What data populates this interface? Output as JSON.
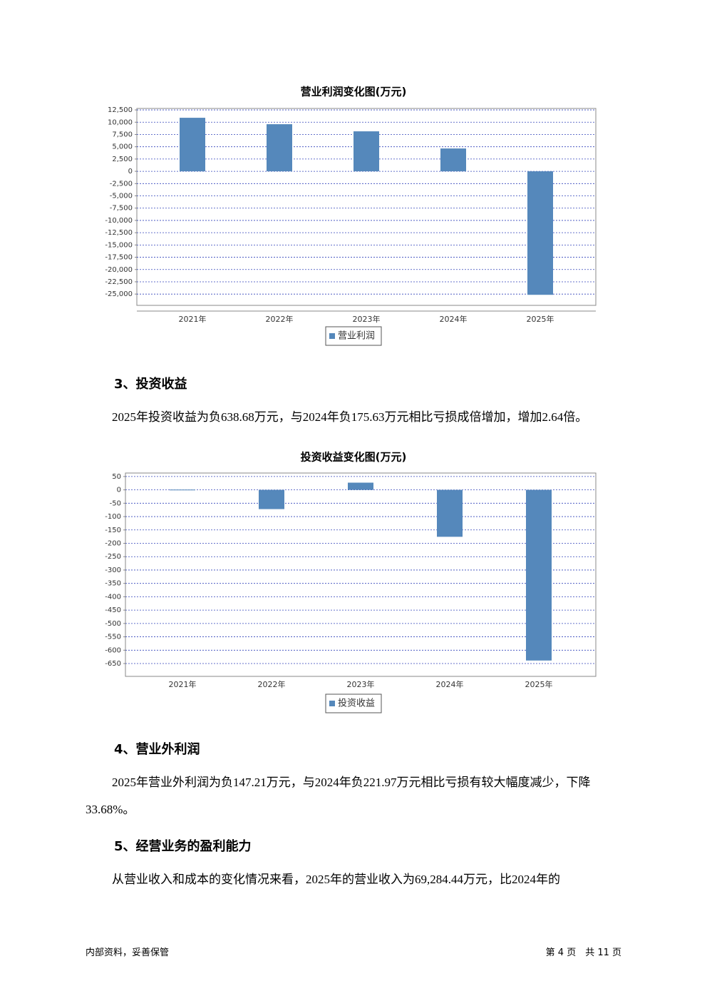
{
  "chart_data": [
    {
      "type": "bar",
      "title": "营业利润变化图(万元)",
      "categories": [
        "2021年",
        "2022年",
        "2023年",
        "2024年",
        "2025年"
      ],
      "series": [
        {
          "name": "营业利润",
          "color": "#5588bb",
          "values": [
            10900,
            9590,
            8140,
            4650,
            -25150
          ]
        }
      ],
      "ylim": [
        -27300,
        12800
      ],
      "yticks": [
        {
          "value": 12500,
          "label": "12,500"
        },
        {
          "value": 10000,
          "label": "10,000"
        },
        {
          "value": 7500,
          "label": "7,500"
        },
        {
          "value": 5000,
          "label": "5,000"
        },
        {
          "value": 2500,
          "label": "2,500"
        },
        0,
        {
          "value": -2500,
          "label": "-2,500"
        },
        {
          "value": -5000,
          "label": "-5,000"
        },
        {
          "value": -7500,
          "label": "-7,500"
        },
        {
          "value": -10000,
          "label": "-10,000"
        },
        {
          "value": -12500,
          "label": "-12,500"
        },
        {
          "value": -15000,
          "label": "-15,000"
        },
        {
          "value": -17500,
          "label": "-17,500"
        },
        {
          "value": -20000,
          "label": "-20,000"
        },
        {
          "value": -22500,
          "label": "-22,500"
        },
        {
          "value": -25000,
          "label": "-25,000"
        }
      ],
      "grid": true
    },
    {
      "type": "bar",
      "title": "投资收益变化图(万元)",
      "categories": [
        "2021年",
        "2022年",
        "2023年",
        "2024年",
        "2025年"
      ],
      "series": [
        {
          "name": "投资收益",
          "color": "#5588bb",
          "values": [
            1,
            -72,
            27,
            -175.63,
            -638.68
          ]
        }
      ],
      "ylim": [
        -698,
        63
      ],
      "yticks": [
        50,
        0,
        -50,
        -100,
        -150,
        -200,
        -250,
        -300,
        -350,
        -400,
        -450,
        -500,
        -550,
        -600,
        -650
      ],
      "grid": true
    }
  ],
  "sections": [
    {
      "heading": "3、投资收益",
      "paragraph": "2025年投资收益为负638.68万元，与2024年负175.63万元相比亏损成倍增加，增加2.64倍。"
    },
    {
      "heading": "4、营业外利润",
      "paragraph": "2025年营业外利润为负147.21万元，与2024年负221.97万元相比亏损有较大幅度减少，下降33.68%。"
    },
    {
      "heading": "5、经营业务的盈利能力",
      "paragraph": "从营业收入和成本的变化情况来看，2025年的营业收入为69,284.44万元，比2024年的"
    }
  ],
  "footer": {
    "left": "内部资料，妥善保管",
    "right": "第 4 页　共 11 页"
  }
}
